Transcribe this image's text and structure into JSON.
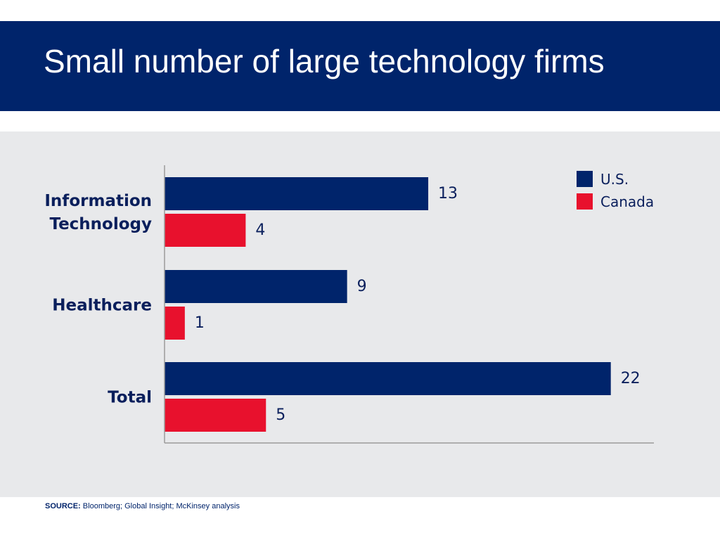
{
  "slide": {
    "title": "Small number of large technology firms",
    "source_label": "SOURCE:",
    "source_text": "Bloomberg; Global Insight; McKinsey analysis"
  },
  "colors": {
    "header_bg": "#00246b",
    "us": "#00246b",
    "canada": "#e8112d",
    "panel_bg": "#e8e9eb",
    "text": "#0a1f5c"
  },
  "chart_data": {
    "type": "bar",
    "orientation": "horizontal",
    "categories": [
      [
        "Information",
        "Technology"
      ],
      [
        "Healthcare"
      ],
      [
        "Total"
      ]
    ],
    "series": [
      {
        "name": "U.S.",
        "color": "#00246b",
        "values": [
          13,
          9,
          22
        ]
      },
      {
        "name": "Canada",
        "color": "#e8112d",
        "values": [
          4,
          1,
          5
        ]
      }
    ],
    "legend_position": "top-right",
    "grid": false,
    "data_labels": true
  }
}
